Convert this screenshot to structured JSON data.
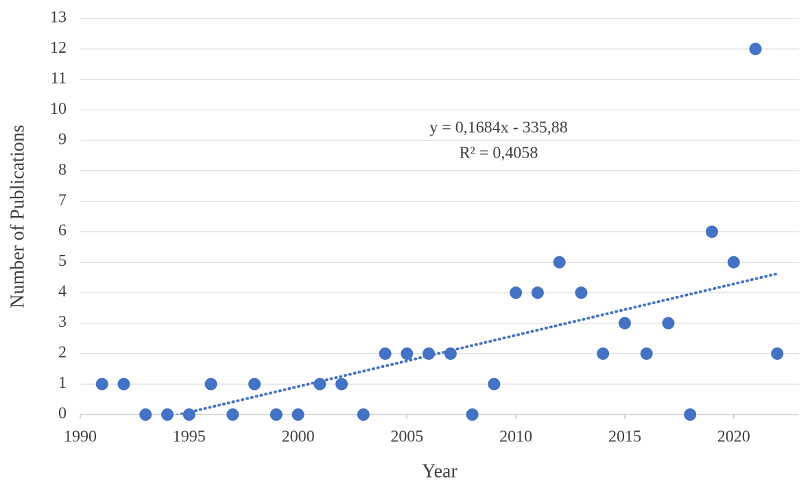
{
  "chart_data": {
    "type": "scatter",
    "x_label": "Year",
    "y_label": "Number of Publications",
    "x": [
      1991,
      1992,
      1993,
      1994,
      1995,
      1996,
      1997,
      1998,
      1999,
      2000,
      2001,
      2002,
      2003,
      2004,
      2005,
      2006,
      2007,
      2008,
      2009,
      2010,
      2011,
      2012,
      2013,
      2014,
      2015,
      2016,
      2017,
      2018,
      2019,
      2020,
      2021,
      2022
    ],
    "values": [
      1,
      1,
      0,
      0,
      0,
      1,
      0,
      1,
      0,
      0,
      1,
      1,
      0,
      2,
      2,
      2,
      2,
      0,
      1,
      4,
      4,
      5,
      4,
      2,
      3,
      2,
      3,
      0,
      6,
      5,
      12,
      2
    ],
    "color": "#4472c4",
    "xlim": [
      1990,
      2023
    ],
    "xticks": [
      1990,
      1995,
      2000,
      2005,
      2010,
      2015,
      2020
    ],
    "ylim": [
      0,
      13
    ],
    "yticks": [
      0,
      1,
      2,
      3,
      4,
      5,
      6,
      7,
      8,
      9,
      10,
      11,
      12,
      13
    ],
    "grid": true,
    "trendline": {
      "slope": 0.1684,
      "intercept": -335.88,
      "r2": 0.4058,
      "equation_label": "y = 0,1684x - 335,88",
      "r2_label": "R² = 0,4058"
    }
  }
}
